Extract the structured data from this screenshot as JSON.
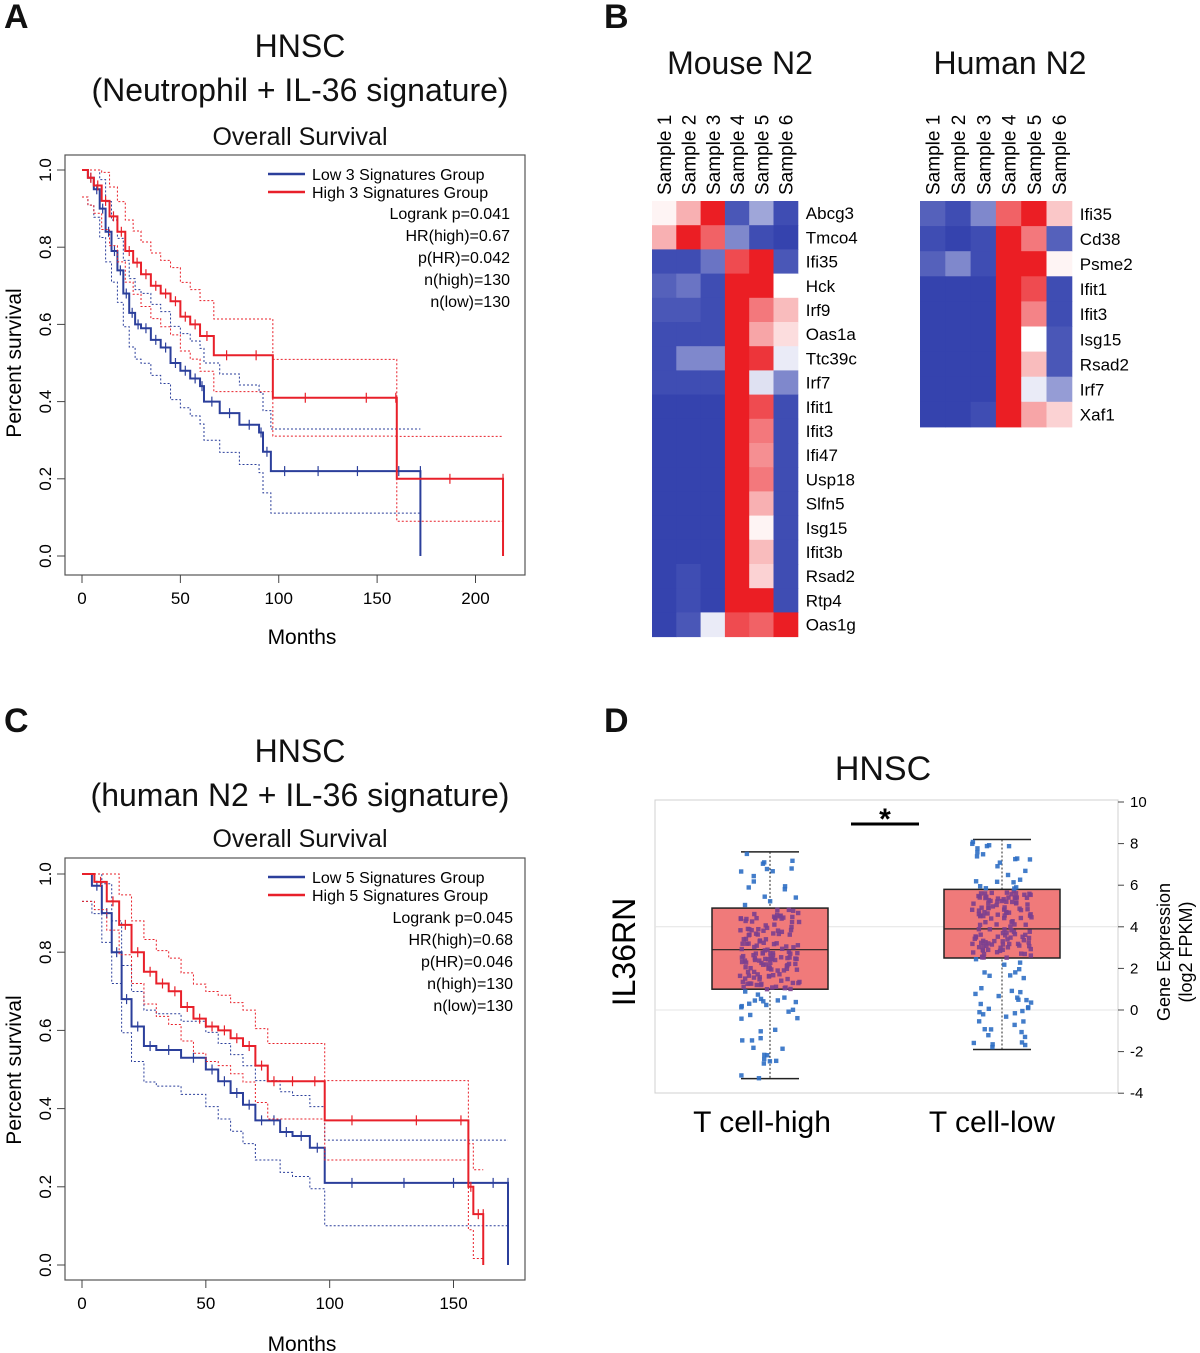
{
  "panels": {
    "A": {
      "letter": "A",
      "title": "HNSC",
      "subtitle": "(Neutrophil + IL-36 signature)",
      "plot_title": "Overall Survival",
      "xlabel": "Months",
      "ylabel": "Percent survival",
      "xticks": [
        "0",
        "50",
        "100",
        "150",
        "200"
      ],
      "yticks": [
        "0.0",
        "0.2",
        "0.4",
        "0.6",
        "0.8",
        "1.0"
      ],
      "legend": [
        "Low 3 Signatures Group",
        "High 3 Signatures Group"
      ],
      "stats": [
        "Logrank p=0.041",
        "HR(high)=0.67",
        "p(HR)=0.042",
        "n(high)=130",
        "n(low)=130"
      ]
    },
    "B": {
      "letter": "B",
      "mouse_title": "Mouse N2",
      "human_title": "Human N2",
      "samples": [
        "Sample 1",
        "Sample 2",
        "Sample 3",
        "Sample 4",
        "Sample 5",
        "Sample 6"
      ]
    },
    "C": {
      "letter": "C",
      "title": "HNSC",
      "subtitle": "(human N2 + IL-36 signature)",
      "plot_title": "Overall Survival",
      "xlabel": "Months",
      "ylabel": "Percent survival",
      "xticks": [
        "0",
        "50",
        "100",
        "150"
      ],
      "yticks": [
        "0.0",
        "0.2",
        "0.4",
        "0.6",
        "0.8",
        "1.0"
      ],
      "legend": [
        "Low 5 Signatures Group",
        "High 5 Signatures Group"
      ],
      "stats": [
        "Logrank p=0.045",
        "HR(high)=0.68",
        "p(HR)=0.046",
        "n(high)=130",
        "n(low)=130"
      ]
    },
    "D": {
      "letter": "D",
      "title": "HNSC",
      "gene_label": "IL36RN",
      "ylabel_line1": "Gene Expression",
      "ylabel_line2": "(log2 FPKM)",
      "yticks": [
        "-4",
        "-2",
        "0",
        "2",
        "4",
        "6",
        "8",
        "10"
      ],
      "categories": [
        "T cell-high",
        "T cell-low"
      ],
      "significance": "*"
    }
  },
  "colors": {
    "low": "#2b3f9b",
    "high": "#e8202a",
    "box": "#f07a7a",
    "dot": "#2f6fc4"
  },
  "chart_data": [
    {
      "type": "line",
      "title": "Overall Survival",
      "xlabel": "Months",
      "ylabel": "Percent survival",
      "xlim": [
        0,
        215
      ],
      "ylim": [
        0,
        1
      ],
      "legend_position": "top-right",
      "series": [
        {
          "name": "Low 3 Signatures Group",
          "x": [
            0,
            3,
            6,
            9,
            12,
            15,
            18,
            21,
            24,
            27,
            30,
            35,
            40,
            45,
            50,
            55,
            60,
            62,
            70,
            80,
            90,
            92,
            96,
            110,
            130,
            150,
            172,
            172
          ],
          "y": [
            1.0,
            0.98,
            0.95,
            0.9,
            0.84,
            0.79,
            0.74,
            0.68,
            0.63,
            0.6,
            0.59,
            0.56,
            0.54,
            0.5,
            0.48,
            0.46,
            0.44,
            0.4,
            0.37,
            0.34,
            0.32,
            0.27,
            0.22,
            0.22,
            0.22,
            0.22,
            0.22,
            0.0
          ]
        },
        {
          "name": "High 3 Signatures Group",
          "x": [
            0,
            3,
            6,
            10,
            14,
            18,
            22,
            26,
            30,
            35,
            40,
            45,
            50,
            55,
            60,
            67,
            80,
            97,
            130,
            159,
            160,
            214,
            214
          ],
          "y": [
            1.0,
            0.98,
            0.96,
            0.92,
            0.88,
            0.84,
            0.79,
            0.76,
            0.73,
            0.7,
            0.68,
            0.66,
            0.62,
            0.6,
            0.57,
            0.52,
            0.52,
            0.41,
            0.41,
            0.41,
            0.2,
            0.2,
            0.0
          ]
        }
      ]
    },
    {
      "type": "heatmap",
      "title": "Mouse N2",
      "columns": [
        "Sample 1",
        "Sample 2",
        "Sample 3",
        "Sample 4",
        "Sample 5",
        "Sample 6"
      ],
      "rows": [
        "Abcg3",
        "Tmco4",
        "Ifi35",
        "Hck",
        "Irf9",
        "Oas1a",
        "Ttc39c",
        "Irf7",
        "Ifit1",
        "Ifit3",
        "Ifi47",
        "Usp18",
        "Slfn5",
        "Isg15",
        "Ifit3b",
        "Rsad2",
        "Rtp4",
        "Oas1g"
      ],
      "values": [
        [
          0.05,
          0.35,
          1.0,
          -0.85,
          -0.45,
          -0.9
        ],
        [
          0.35,
          1.0,
          0.7,
          -0.6,
          -0.9,
          -0.95
        ],
        [
          -0.9,
          -0.9,
          -0.7,
          0.8,
          1.0,
          -0.85
        ],
        [
          -0.8,
          -0.7,
          -0.9,
          1.0,
          1.0,
          0.0
        ],
        [
          -0.85,
          -0.85,
          -0.9,
          1.0,
          0.6,
          0.3
        ],
        [
          -0.9,
          -0.9,
          -0.9,
          1.0,
          0.4,
          0.15
        ],
        [
          -0.9,
          -0.6,
          -0.6,
          1.0,
          0.9,
          -0.1
        ],
        [
          -0.9,
          -0.9,
          -0.9,
          1.0,
          -0.15,
          -0.6
        ],
        [
          -0.95,
          -0.95,
          -0.95,
          1.0,
          0.8,
          -0.9
        ],
        [
          -0.95,
          -0.95,
          -0.95,
          1.0,
          0.6,
          -0.9
        ],
        [
          -0.95,
          -0.95,
          -0.95,
          1.0,
          0.5,
          -0.9
        ],
        [
          -0.95,
          -0.95,
          -0.95,
          1.0,
          0.6,
          -0.9
        ],
        [
          -0.95,
          -0.95,
          -0.95,
          1.0,
          0.35,
          -0.9
        ],
        [
          -0.95,
          -0.95,
          -0.95,
          1.0,
          0.05,
          -0.9
        ],
        [
          -0.95,
          -0.95,
          -0.95,
          1.0,
          0.3,
          -0.9
        ],
        [
          -0.95,
          -0.9,
          -0.95,
          1.0,
          0.2,
          -0.9
        ],
        [
          -0.95,
          -0.9,
          -0.95,
          1.0,
          1.0,
          -0.9
        ],
        [
          -0.95,
          -0.85,
          -0.1,
          0.8,
          0.7,
          1.0
        ]
      ]
    },
    {
      "type": "heatmap",
      "title": "Human N2",
      "columns": [
        "Sample 1",
        "Sample 2",
        "Sample 3",
        "Sample 4",
        "Sample 5",
        "Sample 6"
      ],
      "rows": [
        "Ifi35",
        "Cd38",
        "Psme2",
        "Ifit1",
        "Ifit3",
        "Isg15",
        "Rsad2",
        "Irf7",
        "Xaf1"
      ],
      "values": [
        [
          -0.8,
          -0.9,
          -0.6,
          0.7,
          1.0,
          0.25
        ],
        [
          -0.9,
          -0.95,
          -0.9,
          1.0,
          0.6,
          -0.8
        ],
        [
          -0.8,
          -0.6,
          -0.9,
          1.0,
          1.0,
          0.05
        ],
        [
          -0.95,
          -0.95,
          -0.95,
          1.0,
          0.8,
          -0.9
        ],
        [
          -0.95,
          -0.95,
          -0.95,
          1.0,
          0.55,
          -0.9
        ],
        [
          -0.95,
          -0.95,
          -0.95,
          1.0,
          0.0,
          -0.85
        ],
        [
          -0.95,
          -0.95,
          -0.95,
          1.0,
          0.3,
          -0.85
        ],
        [
          -0.95,
          -0.95,
          -0.95,
          1.0,
          -0.1,
          -0.5
        ],
        [
          -0.95,
          -0.95,
          -0.9,
          1.0,
          0.4,
          0.2
        ]
      ]
    },
    {
      "type": "line",
      "title": "Overall Survival",
      "xlabel": "Months",
      "ylabel": "Percent survival",
      "xlim": [
        0,
        172
      ],
      "ylim": [
        0,
        1
      ],
      "legend_position": "top-right",
      "series": [
        {
          "name": "Low 5 Signatures Group",
          "x": [
            0,
            4,
            8,
            12,
            16,
            20,
            25,
            30,
            40,
            50,
            55,
            60,
            65,
            70,
            75,
            80,
            85,
            92,
            98,
            120,
            140,
            160,
            172,
            172
          ],
          "y": [
            1.0,
            0.97,
            0.9,
            0.8,
            0.68,
            0.61,
            0.56,
            0.55,
            0.53,
            0.5,
            0.47,
            0.44,
            0.41,
            0.37,
            0.37,
            0.34,
            0.33,
            0.3,
            0.21,
            0.21,
            0.21,
            0.21,
            0.21,
            0.0
          ]
        },
        {
          "name": "High 5 Signatures Group",
          "x": [
            0,
            5,
            10,
            15,
            20,
            25,
            30,
            35,
            40,
            45,
            50,
            55,
            60,
            65,
            70,
            75,
            80,
            90,
            98,
            120,
            150,
            156,
            158,
            162,
            162
          ],
          "y": [
            1.0,
            0.98,
            0.93,
            0.87,
            0.8,
            0.75,
            0.72,
            0.7,
            0.66,
            0.63,
            0.61,
            0.6,
            0.58,
            0.56,
            0.51,
            0.47,
            0.47,
            0.47,
            0.37,
            0.37,
            0.37,
            0.2,
            0.13,
            0.13,
            0.0
          ]
        }
      ]
    },
    {
      "type": "box",
      "title": "HNSC",
      "ylabel": "Gene Expression (log2 FPKM)",
      "ylim": [
        -4,
        10
      ],
      "categories": [
        "T cell-high",
        "T cell-low"
      ],
      "boxes": [
        {
          "name": "T cell-high",
          "min": -3.3,
          "q1": 1.0,
          "median": 2.9,
          "q3": 4.9,
          "max": 7.6
        },
        {
          "name": "T cell-low",
          "min": -1.9,
          "q1": 2.5,
          "median": 3.9,
          "q3": 5.8,
          "max": 8.2
        }
      ],
      "annotations": [
        "*"
      ]
    }
  ]
}
